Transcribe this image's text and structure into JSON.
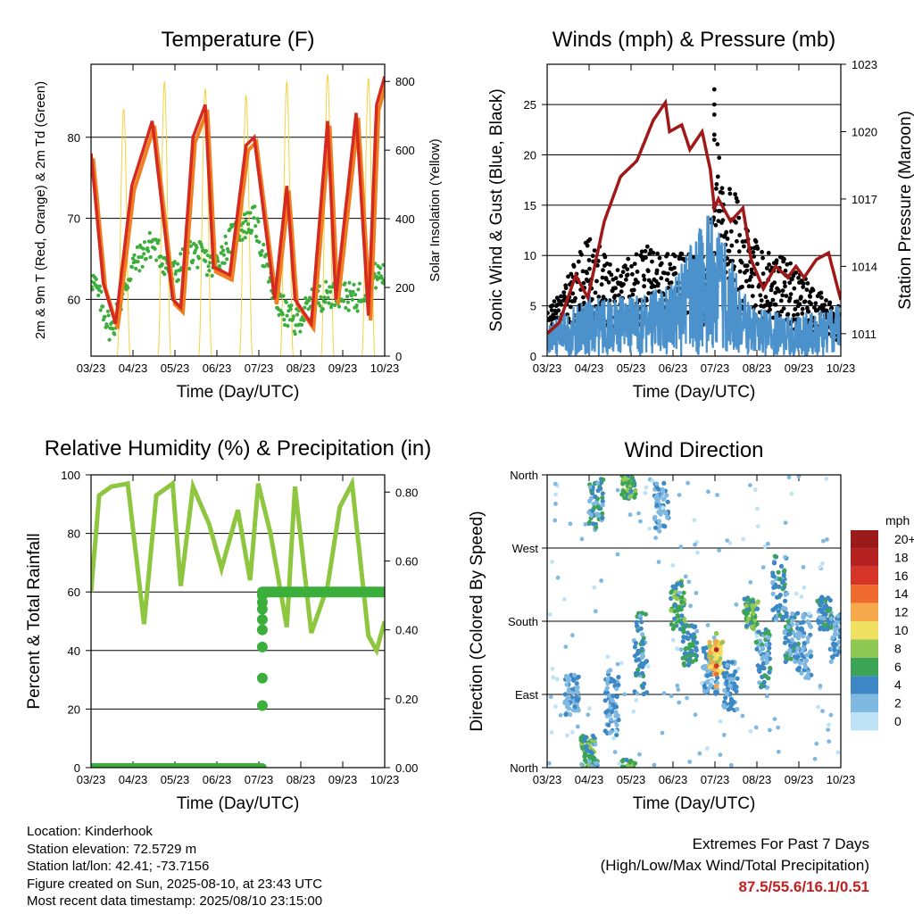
{
  "footer": {
    "location": "Location: Kinderhook",
    "elevation": "Station elevation: 72.5729 m",
    "latlon": "Station lat/lon: 42.41; -73.7156",
    "created": "Figure created on Sun, 2025-08-10, at 23:43 UTC",
    "recent": "Most recent data timestamp: 2025/08/10 23:15:00",
    "extremes_title": "Extremes For Past 7 Days",
    "extremes_sub": "(High/Low/Max Wind/Total Precipitation)",
    "extremes_values": "87.5/55.6/16.1/0.51",
    "extremes_color": "#c02020"
  },
  "colors": {
    "temp2m": "#d42a20",
    "temp9m": "#f07f1f",
    "dewpoint": "#3cae3c",
    "solar": "#f2d240",
    "gust": "#000000",
    "wind": "#4b91cc",
    "pressure": "#a01818",
    "rh": "#8ec63f",
    "rain": "#3cae3c"
  },
  "chart_data": [
    {
      "type": "line",
      "title": "Temperature (F)",
      "xlabel": "Time (Day/UTC)",
      "ylabel": "2m & 9m T (Red, Orange) & 2m Td (Green)",
      "y2label": "Solar Insolation (Yellow)",
      "x_ticks": [
        "03/23",
        "04/23",
        "05/23",
        "06/23",
        "07/23",
        "08/23",
        "09/23",
        "10/23"
      ],
      "ylim": [
        53,
        89
      ],
      "yticks": [
        60,
        70,
        80
      ],
      "y2lim": [
        0,
        850
      ],
      "y2ticks": [
        0,
        200,
        400,
        600,
        800
      ],
      "grid": true,
      "series": [
        {
          "name": "2m T",
          "x": [
            0,
            0.3,
            0.6,
            1.0,
            1.5,
            2.0,
            2.2,
            2.5,
            2.8,
            3.0,
            3.4,
            3.8,
            4.0,
            4.5,
            4.8,
            5.0,
            5.4,
            5.8,
            6.0,
            6.5,
            6.8,
            7.0,
            7.2
          ],
          "y": [
            78,
            62,
            57,
            74,
            82,
            60,
            59,
            80,
            84,
            64,
            63,
            79,
            80,
            60,
            74,
            60,
            57,
            82,
            60,
            83,
            58,
            84,
            87.5
          ]
        },
        {
          "name": "2m Td",
          "x": [
            0,
            0.5,
            1.0,
            1.5,
            2.0,
            2.5,
            3.0,
            3.5,
            4.0,
            4.5,
            5.0,
            5.5,
            6.0,
            6.5,
            7.0
          ],
          "y": [
            63,
            56,
            64,
            67,
            63,
            66,
            64,
            68,
            70,
            60,
            57,
            60,
            61,
            60,
            63
          ]
        },
        {
          "name": "Solar Insolation",
          "axis": "y2",
          "peaks": [
            0.8,
            1.8,
            2.8,
            3.8,
            4.8,
            5.8,
            6.8
          ],
          "peak_values": [
            720,
            800,
            780,
            760,
            800,
            820,
            810
          ]
        }
      ]
    },
    {
      "type": "scatter",
      "title": "Winds (mph) & Pressure (mb)",
      "xlabel": "Time (Day/UTC)",
      "ylabel": "Sonic Wind & Gust (Blue, Black)",
      "y2label": "Station Pressure (Maroon)",
      "x_ticks": [
        "03/23",
        "04/23",
        "05/23",
        "06/23",
        "07/23",
        "08/23",
        "09/23",
        "10/23"
      ],
      "ylim": [
        0,
        29
      ],
      "yticks": [
        0,
        5,
        10,
        15,
        20,
        25
      ],
      "y2lim": [
        1010,
        1023
      ],
      "y2ticks": [
        1011,
        1014,
        1017,
        1020,
        1023
      ],
      "grid": true,
      "series": [
        {
          "name": "Pressure",
          "axis": "y2",
          "x": [
            0,
            0.3,
            0.7,
            1.0,
            1.4,
            1.8,
            2.2,
            2.6,
            2.9,
            3.0,
            3.3,
            3.5,
            3.8,
            4.0,
            4.1,
            4.2,
            4.5,
            4.8,
            5.0,
            5.3,
            5.6,
            5.9,
            6.1,
            6.3,
            6.6,
            6.9,
            7.2
          ],
          "y": [
            1011,
            1011.5,
            1013.6,
            1012.6,
            1016.0,
            1018.0,
            1018.7,
            1020.5,
            1021.3,
            1020.0,
            1020.3,
            1019.2,
            1020.0,
            1018.3,
            1016.6,
            1017.0,
            1016.0,
            1016.6,
            1014.3,
            1013.0,
            1014.0,
            1013.5,
            1014.0,
            1013.5,
            1014.3,
            1014.6,
            1012.5
          ]
        },
        {
          "name": "Gust (max)",
          "x": [
            0,
            1,
            1.8,
            2.5,
            3.0,
            4.0,
            4.1,
            5.0,
            6.0,
            7.0
          ],
          "y": [
            5,
            14,
            11,
            13,
            12,
            12,
            26.5,
            14,
            11,
            6
          ]
        },
        {
          "name": "Sonic Wind (max)",
          "x": [
            0,
            1,
            2,
            3,
            4.0,
            5,
            6,
            7
          ],
          "y": [
            3,
            6,
            6,
            7,
            15,
            5,
            4,
            5
          ]
        }
      ]
    },
    {
      "type": "line",
      "title": "Relative Humidity (%) & Precipitation (in)",
      "xlabel": "Time (Day/UTC)",
      "ylabel": "Percent & Total Rainfall",
      "x_ticks": [
        "03/23",
        "04/23",
        "05/23",
        "06/23",
        "07/23",
        "08/23",
        "09/23",
        "10/23"
      ],
      "ylim": [
        0,
        100
      ],
      "yticks": [
        0,
        20,
        40,
        60,
        80,
        100
      ],
      "y2lim": [
        0,
        0.85
      ],
      "y2ticks": [
        "0.00",
        "0.20",
        "0.40",
        "0.60",
        "0.80"
      ],
      "grid": true,
      "series": [
        {
          "name": "Relative Humidity",
          "x": [
            0,
            0.2,
            0.5,
            0.9,
            1.3,
            1.6,
            2.0,
            2.2,
            2.5,
            2.9,
            3.2,
            3.6,
            3.9,
            4.1,
            4.4,
            4.8,
            5.0,
            5.4,
            5.8,
            6.1,
            6.4,
            6.8,
            7.0,
            7.2
          ],
          "y": [
            60,
            93,
            96,
            97,
            49,
            93,
            97,
            62,
            96,
            83,
            68,
            88,
            64,
            97,
            80,
            48,
            96,
            46,
            62,
            89,
            97,
            45,
            40,
            50
          ]
        },
        {
          "name": "Total Rainfall",
          "axis": "y2",
          "x": [
            0,
            4.2,
            4.25,
            7.2
          ],
          "y": [
            0,
            0,
            0.51,
            0.51
          ]
        }
      ]
    },
    {
      "type": "scatter",
      "title": "Wind Direction",
      "xlabel": "Time (Day/UTC)",
      "ylabel": "Direction (Colored By Speed)",
      "x_ticks": [
        "03/23",
        "04/23",
        "05/23",
        "06/23",
        "07/23",
        "08/23",
        "09/23",
        "10/23"
      ],
      "yticks": [
        "North",
        "East",
        "South",
        "West",
        "North"
      ],
      "grid": true,
      "legend_title": "mph",
      "legend_labels": [
        "20+",
        "18",
        "16",
        "14",
        "12",
        "10",
        "8",
        "6",
        "4",
        "2",
        "0"
      ],
      "legend_colors": [
        "#9b1a1a",
        "#b52020",
        "#d8352a",
        "#ef6a2d",
        "#f6a94a",
        "#f0e060",
        "#8fc853",
        "#3ba455",
        "#3d88c4",
        "#7fb8e0",
        "#bfe3f6"
      ],
      "clusters": [
        {
          "x": 0.6,
          "dir": 90,
          "spread": 25,
          "speed": 3
        },
        {
          "x": 1.0,
          "dir": 20,
          "spread": 20,
          "speed": 6
        },
        {
          "x": 1.2,
          "dir": 330,
          "spread": 40,
          "speed": 4
        },
        {
          "x": 1.6,
          "dir": 80,
          "spread": 40,
          "speed": 3
        },
        {
          "x": 2.0,
          "dir": 350,
          "spread": 20,
          "speed": 6
        },
        {
          "x": 2.3,
          "dir": 140,
          "spread": 50,
          "speed": 4
        },
        {
          "x": 2.8,
          "dir": 320,
          "spread": 30,
          "speed": 3
        },
        {
          "x": 3.2,
          "dir": 200,
          "spread": 30,
          "speed": 6
        },
        {
          "x": 3.5,
          "dir": 150,
          "spread": 25,
          "speed": 5
        },
        {
          "x": 4.0,
          "dir": 120,
          "spread": 30,
          "speed": 3
        },
        {
          "x": 4.15,
          "dir": 135,
          "spread": 20,
          "speed": 10
        },
        {
          "x": 4.5,
          "dir": 100,
          "spread": 30,
          "speed": 3
        },
        {
          "x": 5.0,
          "dir": 190,
          "spread": 20,
          "speed": 6
        },
        {
          "x": 5.3,
          "dir": 130,
          "spread": 40,
          "speed": 4
        },
        {
          "x": 5.7,
          "dir": 220,
          "spread": 40,
          "speed": 4
        },
        {
          "x": 6.0,
          "dir": 160,
          "spread": 30,
          "speed": 4
        },
        {
          "x": 6.3,
          "dir": 150,
          "spread": 40,
          "speed": 3
        },
        {
          "x": 6.8,
          "dir": 190,
          "spread": 20,
          "speed": 4
        },
        {
          "x": 7.1,
          "dir": 160,
          "spread": 30,
          "speed": 3
        }
      ]
    }
  ]
}
